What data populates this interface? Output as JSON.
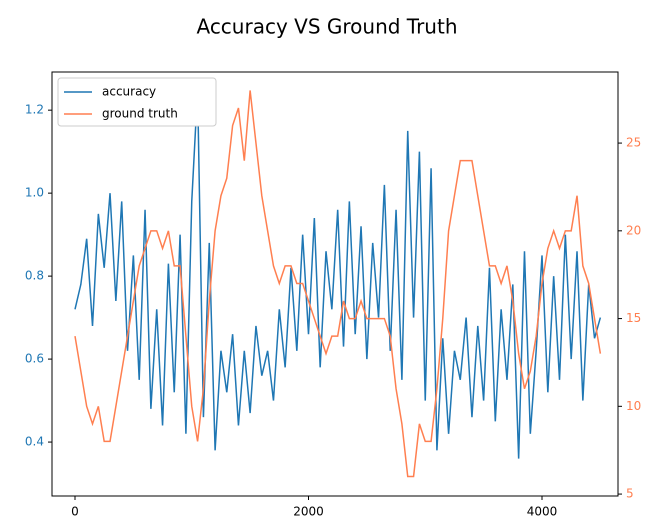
{
  "chart_data": {
    "type": "line",
    "title": "Accuracy VS Ground Truth",
    "x": [
      0,
      50,
      100,
      150,
      200,
      250,
      300,
      350,
      400,
      450,
      500,
      550,
      600,
      650,
      700,
      750,
      800,
      850,
      900,
      950,
      1000,
      1050,
      1100,
      1150,
      1200,
      1250,
      1300,
      1350,
      1400,
      1450,
      1500,
      1550,
      1600,
      1650,
      1700,
      1750,
      1800,
      1850,
      1900,
      1950,
      2000,
      2050,
      2100,
      2150,
      2200,
      2250,
      2300,
      2350,
      2400,
      2450,
      2500,
      2550,
      2600,
      2650,
      2700,
      2750,
      2800,
      2850,
      2900,
      2950,
      3000,
      3050,
      3100,
      3150,
      3200,
      3250,
      3300,
      3350,
      3400,
      3450,
      3500,
      3550,
      3600,
      3650,
      3700,
      3750,
      3800,
      3850,
      3900,
      3950,
      4000,
      4050,
      4100,
      4150,
      4200,
      4250,
      4300,
      4350,
      4400,
      4450,
      4500
    ],
    "series": [
      {
        "name": "accuracy",
        "color": "#1f77b4",
        "values": [
          0.72,
          0.78,
          0.89,
          0.68,
          0.95,
          0.82,
          1.0,
          0.74,
          0.98,
          0.62,
          0.85,
          0.55,
          0.96,
          0.48,
          0.72,
          0.44,
          0.83,
          0.52,
          0.9,
          0.42,
          0.98,
          1.25,
          0.46,
          0.88,
          0.38,
          0.62,
          0.52,
          0.66,
          0.44,
          0.62,
          0.47,
          0.68,
          0.56,
          0.62,
          0.5,
          0.72,
          0.58,
          0.82,
          0.62,
          0.9,
          0.66,
          0.94,
          0.58,
          0.86,
          0.72,
          0.96,
          0.63,
          0.98,
          0.66,
          0.92,
          0.6,
          0.88,
          0.7,
          1.02,
          0.62,
          0.96,
          0.55,
          1.15,
          0.7,
          1.1,
          0.5,
          1.06,
          0.38,
          0.65,
          0.42,
          0.62,
          0.55,
          0.7,
          0.46,
          0.68,
          0.5,
          0.82,
          0.45,
          0.72,
          0.55,
          0.78,
          0.36,
          0.86,
          0.42,
          0.62,
          0.85,
          0.52,
          0.8,
          0.55,
          0.9,
          0.6,
          0.86,
          0.5,
          0.78,
          0.65,
          0.7
        ],
        "axis": "y"
      },
      {
        "name": "ground truth",
        "color": "#ff7f50",
        "values": [
          14,
          12,
          10,
          9,
          10,
          8,
          8,
          10,
          12,
          14,
          16,
          18,
          19,
          20,
          20,
          19,
          20,
          18,
          18,
          14,
          10,
          8,
          11,
          16,
          20,
          22,
          23,
          26,
          27,
          24,
          28,
          25,
          22,
          20,
          18,
          17,
          18,
          18,
          17,
          17,
          16,
          15,
          14,
          13,
          14,
          14,
          16,
          15,
          15,
          16,
          15,
          15,
          15,
          15,
          14,
          11,
          9,
          6,
          6,
          9,
          8,
          8,
          11,
          15,
          20,
          22,
          24,
          24,
          24,
          22,
          20,
          18,
          18,
          17,
          18,
          16,
          13,
          11,
          12,
          14,
          17,
          19,
          20,
          19,
          20,
          20,
          22,
          18,
          17,
          15,
          13
        ],
        "axis": "y2"
      }
    ],
    "xlim": [
      -197,
      4651
    ],
    "xticks": [
      0,
      2000,
      4000
    ],
    "ylim": [
      0.27,
      1.292
    ],
    "yticks": [
      0.4,
      0.6,
      0.8,
      {
        "value": 1,
        "label": "1.0"
      },
      1.2
    ],
    "y2lim": [
      4.89,
      29.05
    ],
    "y2ticks": [
      5,
      10,
      15,
      20,
      25
    ],
    "legend": "upper left",
    "grid": false
  }
}
